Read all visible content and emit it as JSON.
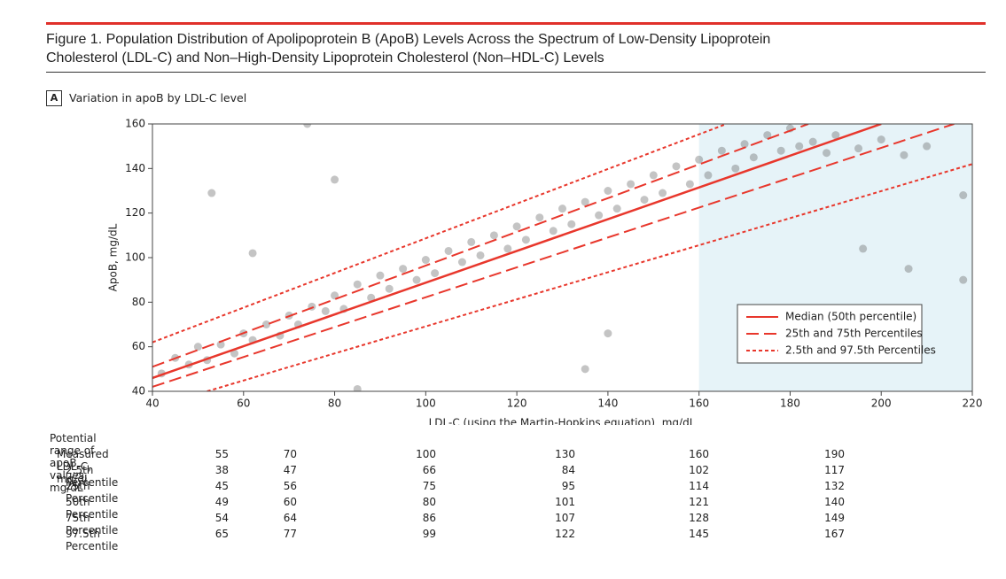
{
  "figure": {
    "title": "Figure 1. Population Distribution of Apolipoprotein B (ApoB) Levels Across the Spectrum of Low-Density Lipoprotein Cholesterol (LDL-C) and Non–High-Density Lipoprotein Cholesterol (Non–HDL-C) Levels",
    "panel": "A",
    "panel_title": "Variation in apoB by LDL-C level"
  },
  "chart_data": {
    "type": "scatter",
    "x_label": "LDL-C (using the Martin-Hopkins equation), mg/dL",
    "y_label": "ApoB, mg/dL",
    "xlim": [
      40,
      220
    ],
    "ylim": [
      40,
      160
    ],
    "xticks": [
      40,
      60,
      80,
      100,
      120,
      140,
      160,
      180,
      200,
      220
    ],
    "yticks": [
      40,
      60,
      80,
      100,
      120,
      140,
      160
    ],
    "legend": "lower-right",
    "series": [
      {
        "type": "scatter",
        "color": "#555555",
        "x": [
          42,
          45,
          48,
          50,
          52,
          55,
          58,
          60,
          62,
          65,
          68,
          70,
          72,
          75,
          78,
          80,
          82,
          85,
          88,
          90,
          92,
          95,
          98,
          100,
          102,
          105,
          108,
          110,
          112,
          115,
          118,
          120,
          122,
          125,
          128,
          130,
          132,
          135,
          138,
          140,
          142,
          145,
          148,
          150,
          152,
          155,
          158,
          160,
          162,
          165,
          168,
          170,
          172,
          175,
          178,
          180,
          182,
          185,
          188,
          190,
          195,
          200,
          205,
          210,
          53,
          74,
          80,
          85,
          135,
          140,
          196,
          218,
          218,
          206,
          62
        ],
        "values": [
          48,
          55,
          52,
          60,
          54,
          61,
          57,
          66,
          63,
          70,
          65,
          74,
          70,
          78,
          76,
          83,
          77,
          88,
          82,
          92,
          86,
          95,
          90,
          99,
          93,
          103,
          98,
          107,
          101,
          110,
          104,
          114,
          108,
          118,
          112,
          122,
          115,
          125,
          119,
          130,
          122,
          133,
          126,
          137,
          129,
          141,
          133,
          144,
          137,
          148,
          140,
          151,
          145,
          155,
          148,
          158,
          150,
          152,
          147,
          155,
          149,
          153,
          146,
          150,
          129,
          160,
          135,
          41,
          50,
          66,
          104,
          128,
          90,
          95,
          102
        ]
      },
      {
        "type": "line",
        "name": "Median (50th percentile)",
        "color": "#e8372c",
        "dash": "solid",
        "lines": [
          {
            "x": [
              40,
              200
            ],
            "values": [
              46,
              160
            ]
          }
        ]
      },
      {
        "type": "line",
        "name": "25th and 75th Percentiles",
        "color": "#e8372c",
        "dash": "dashed",
        "lines": [
          {
            "x": [
              40,
              216
            ],
            "values": [
              42,
              160
            ]
          },
          {
            "x": [
              40,
              184
            ],
            "values": [
              51,
              160
            ]
          }
        ]
      },
      {
        "type": "line",
        "name": "2.5th and 97.5th Percentiles",
        "color": "#e8372c",
        "dash": "dotted",
        "lines": [
          {
            "x": [
              52,
              220
            ],
            "values": [
              40,
              142
            ]
          },
          {
            "x": [
              40,
              166
            ],
            "values": [
              62,
              160
            ]
          }
        ]
      }
    ]
  },
  "table": {
    "title": "Potential range of apoB values, mg/dL",
    "rows": [
      [
        "Measured LDL-C, mg/dL",
        55,
        70,
        100,
        130,
        160,
        190
      ],
      [
        "2.5th Percentile",
        38,
        47,
        66,
        84,
        102,
        117
      ],
      [
        "25th Percentile",
        45,
        56,
        75,
        95,
        114,
        132
      ],
      [
        "50th Percentile",
        49,
        60,
        80,
        101,
        121,
        140
      ],
      [
        "75th Percentile",
        54,
        64,
        86,
        107,
        128,
        149
      ],
      [
        "97.5th Percentile",
        65,
        77,
        99,
        122,
        145,
        167
      ]
    ]
  }
}
